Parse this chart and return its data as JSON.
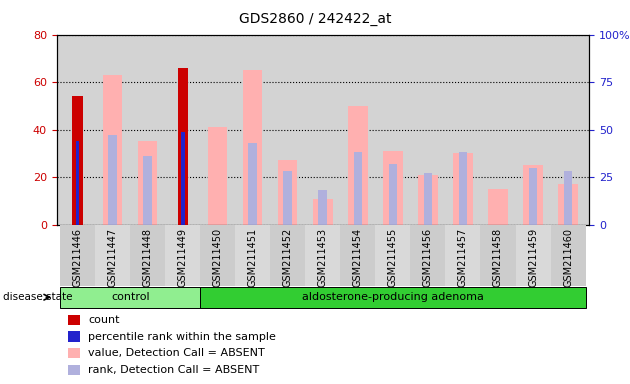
{
  "title": "GDS2860 / 242422_at",
  "samples": [
    "GSM211446",
    "GSM211447",
    "GSM211448",
    "GSM211449",
    "GSM211450",
    "GSM211451",
    "GSM211452",
    "GSM211453",
    "GSM211454",
    "GSM211455",
    "GSM211456",
    "GSM211457",
    "GSM211458",
    "GSM211459",
    "GSM211460"
  ],
  "count_values": [
    54,
    0,
    0,
    66,
    0,
    0,
    0,
    0,
    0,
    0,
    0,
    0,
    0,
    0,
    0
  ],
  "percentile_rank_values": [
    44,
    0,
    0,
    49,
    0,
    0,
    0,
    0,
    0,
    0,
    0,
    0,
    0,
    0,
    0
  ],
  "absent_value_values": [
    0,
    63,
    35,
    0,
    41,
    65,
    27,
    11,
    50,
    31,
    21,
    30,
    15,
    25,
    17
  ],
  "absent_rank_values": [
    0,
    47,
    36,
    0,
    0,
    43,
    28,
    18,
    38,
    32,
    27,
    38,
    0,
    30,
    28
  ],
  "groups": [
    "control",
    "control",
    "control",
    "control",
    "aldosterone-producing adenoma",
    "aldosterone-producing adenoma",
    "aldosterone-producing adenoma",
    "aldosterone-producing adenoma",
    "aldosterone-producing adenoma",
    "aldosterone-producing adenoma",
    "aldosterone-producing adenoma",
    "aldosterone-producing adenoma",
    "aldosterone-producing adenoma",
    "aldosterone-producing adenoma",
    "aldosterone-producing adenoma"
  ],
  "group_colors": {
    "control": "#90ee90",
    "aldosterone-producing adenoma": "#32cd32"
  },
  "ylim_left": [
    0,
    80
  ],
  "ylim_right": [
    0,
    100
  ],
  "yticks_left": [
    0,
    20,
    40,
    60,
    80
  ],
  "yticks_right": [
    0,
    25,
    50,
    75,
    100
  ],
  "color_count": "#cc0000",
  "color_percentile": "#2222cc",
  "color_absent_value": "#ffb0b0",
  "color_absent_rank": "#b0b0dd",
  "background_color": "#d3d3d3",
  "legend_labels": [
    "count",
    "percentile rank within the sample",
    "value, Detection Call = ABSENT",
    "rank, Detection Call = ABSENT"
  ]
}
